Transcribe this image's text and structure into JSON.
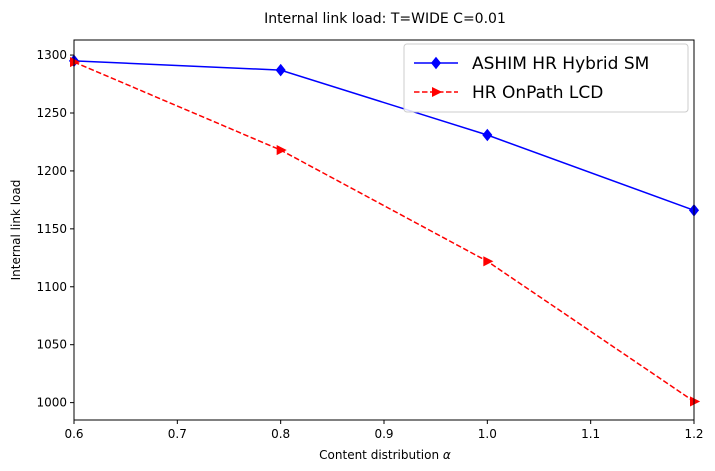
{
  "chart_data": {
    "type": "line",
    "title": "Internal link load: T=WIDE C=0.01",
    "xlabel": "Content distribution",
    "xlabel_symbol": "α",
    "ylabel": "Internal link load",
    "xlim": [
      0.6,
      1.2
    ],
    "ylim": [
      985,
      1313
    ],
    "xticks": [
      0.6,
      0.7,
      0.8,
      0.9,
      1.0,
      1.1,
      1.2
    ],
    "xtick_labels": [
      "0.6",
      "0.7",
      "0.8",
      "0.9",
      "1.0",
      "1.1",
      "1.2"
    ],
    "yticks": [
      1000,
      1050,
      1100,
      1150,
      1200,
      1250,
      1300
    ],
    "ytick_labels": [
      "1000",
      "1050",
      "1100",
      "1150",
      "1200",
      "1250",
      "1300"
    ],
    "grid": false,
    "legend_position": "top-right",
    "series": [
      {
        "name": "ASHIM HR Hybrid SM",
        "color": "#0000ff",
        "linestyle": "solid",
        "marker": "diamond",
        "x": [
          0.6,
          0.8,
          1.0,
          1.2
        ],
        "y": [
          1295,
          1287,
          1231,
          1166
        ]
      },
      {
        "name": "HR OnPath LCD",
        "color": "#ff0000",
        "linestyle": "dashed",
        "marker": "triangle-right",
        "x": [
          0.6,
          0.8,
          1.0,
          1.2
        ],
        "y": [
          1294,
          1218,
          1122,
          1001
        ]
      }
    ]
  }
}
